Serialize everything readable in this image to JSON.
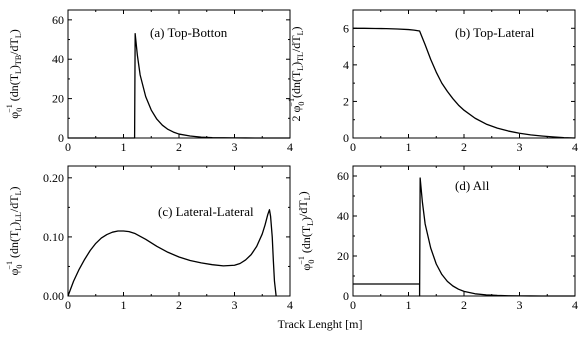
{
  "xlabel": "Track Lenght [m]",
  "chart_data": [
    {
      "type": "line",
      "panel": "(a) Top-Botton",
      "ylabel": "φ₀⁻¹ (dn(Tₗ)ₜ₂/dTₗ)",
      "ylabel_main": "φ",
      "ylabel_parts": [
        "0",
        "−1",
        " (dn(T",
        "L",
        ")",
        "TB",
        "/dT",
        "L",
        ")"
      ],
      "xlim": [
        0,
        4
      ],
      "ylim": [
        0,
        65
      ],
      "xticks": [
        "0",
        "1",
        "2",
        "3",
        "4"
      ],
      "yticks": [
        "0",
        "20",
        "40",
        "60"
      ],
      "series": [
        {
          "x": [
            0,
            1.2,
            1.2,
            1.21,
            1.25,
            1.3,
            1.4,
            1.5,
            1.6,
            1.7,
            1.8,
            1.9,
            2.0,
            2.2,
            2.4,
            2.6,
            2.8,
            3.0,
            3.2,
            3.4,
            4.0
          ],
          "y": [
            0,
            0,
            0,
            53,
            42,
            32,
            21,
            14.2,
            9.6,
            6.5,
            4.4,
            3.0,
            2.0,
            1.0,
            0.45,
            0.2,
            0.1,
            0.05,
            0.02,
            0.01,
            0
          ]
        }
      ]
    },
    {
      "type": "line",
      "panel": "(b) Top-Lateral",
      "ylabel": "2 φ₀⁻¹ (dn(Tₗ)ₜₗ/dTₗ)",
      "ylabel_main": "2 φ",
      "ylabel_parts": [
        "0",
        "−1",
        "(dn(T",
        "L",
        ")",
        "TL",
        "/dT",
        "L",
        ")"
      ],
      "xlim": [
        0,
        4
      ],
      "ylim": [
        0,
        7
      ],
      "xticks": [
        "0",
        "1",
        "2",
        "3",
        "4"
      ],
      "yticks": [
        "0",
        "2",
        "4",
        "6"
      ],
      "series": [
        {
          "x": [
            0,
            0.2,
            0.4,
            0.6,
            0.8,
            1.0,
            1.1,
            1.2,
            1.3,
            1.4,
            1.5,
            1.6,
            1.7,
            1.8,
            1.9,
            2.0,
            2.2,
            2.4,
            2.6,
            2.8,
            3.0,
            3.2,
            3.4,
            3.6,
            3.8,
            4.0
          ],
          "y": [
            6.0,
            6.0,
            5.99,
            5.98,
            5.96,
            5.93,
            5.9,
            5.85,
            5.1,
            4.3,
            3.6,
            3.0,
            2.55,
            2.15,
            1.8,
            1.52,
            1.08,
            0.76,
            0.54,
            0.38,
            0.26,
            0.17,
            0.11,
            0.06,
            0.02,
            0
          ]
        }
      ]
    },
    {
      "type": "line",
      "panel": "(c) Lateral-Lateral",
      "ylabel": "φ₀⁻¹ (dn(Tₗ)ₗₗ/dTₗ)",
      "ylabel_main": "φ",
      "ylabel_parts": [
        "0",
        "−1",
        " (dn(T",
        "L",
        ")",
        "LL",
        "/dT",
        "L",
        ")"
      ],
      "xlim": [
        0,
        4
      ],
      "ylim": [
        0,
        0.22
      ],
      "xticks": [
        "0",
        "1",
        "2",
        "3",
        "4"
      ],
      "yticks": [
        "0.00",
        "0.10",
        "0.20"
      ],
      "series": [
        {
          "x": [
            0,
            0.1,
            0.2,
            0.3,
            0.4,
            0.5,
            0.6,
            0.7,
            0.8,
            0.9,
            1.0,
            1.1,
            1.2,
            1.3,
            1.4,
            1.5,
            1.6,
            1.8,
            2.0,
            2.2,
            2.4,
            2.6,
            2.8,
            3.0,
            3.1,
            3.2,
            3.3,
            3.4,
            3.5,
            3.55,
            3.6,
            3.63,
            3.65,
            3.68,
            3.7,
            3.72,
            3.75
          ],
          "y": [
            0.0,
            0.025,
            0.045,
            0.062,
            0.077,
            0.089,
            0.098,
            0.104,
            0.108,
            0.11,
            0.11,
            0.109,
            0.106,
            0.101,
            0.096,
            0.09,
            0.084,
            0.074,
            0.066,
            0.06,
            0.056,
            0.053,
            0.051,
            0.052,
            0.055,
            0.061,
            0.07,
            0.084,
            0.105,
            0.12,
            0.138,
            0.146,
            0.135,
            0.1,
            0.06,
            0.025,
            0.0
          ]
        }
      ]
    },
    {
      "type": "line",
      "panel": "(d) All",
      "ylabel": "φ₀⁻¹ (dn(Tₗ)/dTₗ)",
      "ylabel_main": "φ",
      "ylabel_parts": [
        "0",
        "−1",
        " (dn(T",
        "L",
        ")",
        "",
        "/dT",
        "L",
        ")"
      ],
      "xlim": [
        0,
        4
      ],
      "ylim": [
        0,
        65
      ],
      "xticks": [
        "0",
        "1",
        "2",
        "3",
        "4"
      ],
      "yticks": [
        "0",
        "20",
        "40",
        "60"
      ],
      "series": [
        {
          "x": [
            0,
            1.2,
            1.2,
            1.21,
            1.25,
            1.3,
            1.4,
            1.5,
            1.6,
            1.7,
            1.8,
            1.9,
            2.0,
            2.2,
            2.4,
            2.6,
            2.8,
            3.0,
            3.2,
            3.4,
            3.6,
            4.0
          ],
          "y": [
            6,
            6,
            0,
            59,
            47,
            36,
            24,
            16,
            10.8,
            7.3,
            5.0,
            3.4,
            2.3,
            1.1,
            0.55,
            0.27,
            0.13,
            0.06,
            0.03,
            0.01,
            0.005,
            0
          ]
        }
      ]
    }
  ]
}
